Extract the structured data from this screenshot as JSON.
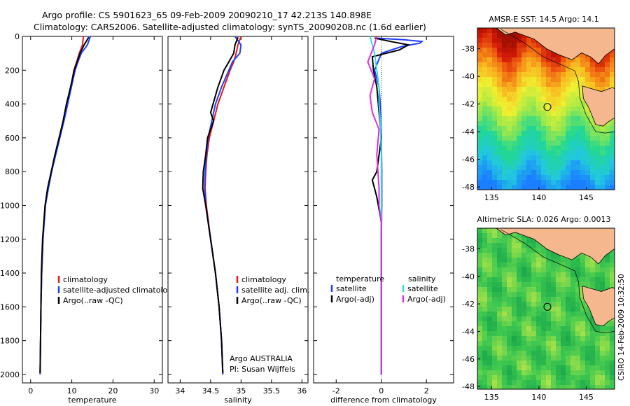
{
  "figure": {
    "title_line1": "Argo profile: CS 5901623_65 09-Feb-2009 20090210_17 42.213S 140.898E",
    "title_line2": "Climatology: CARS2006. Satellite-adjusted climatology: synTS_20090208.nc (1.6d earlier)",
    "side_stamp": "CSIRO 14-Feb-2009 10:32:50",
    "credit_line1": "Argo AUSTRALIA",
    "credit_line2": "PI: Susan Wijffels"
  },
  "colors": {
    "climatology": "#e41a1c",
    "satellite": "#1f3fff",
    "argo": "#000000",
    "sal_satellite": "#33dde8",
    "sal_argo": "#e02ee0",
    "land": "#f5b88e"
  },
  "chart_data": [
    {
      "type": "line",
      "xlabel": "temperature",
      "ylabel": "",
      "xlim": [
        -2,
        32
      ],
      "ylim": [
        2050,
        0
      ],
      "xticks": [
        0,
        10,
        20,
        30
      ],
      "yticks": [
        0,
        200,
        400,
        600,
        800,
        1000,
        1200,
        1400,
        1600,
        1800,
        2000
      ],
      "y_reversed": true,
      "legend": [
        "climatology",
        "satellite-adjusted climatology",
        "Argo(..raw -QC)"
      ],
      "legend_loc": "lower-center",
      "series": [
        {
          "name": "climatology",
          "color": "#e41a1c",
          "x": [
            12.8,
            12.6,
            11.8,
            11.2,
            10.5,
            9.8,
            8.9,
            8.0,
            7.0,
            6.0,
            5.0,
            4.2,
            3.5,
            3.0,
            2.7,
            2.5,
            2.4,
            2.3
          ],
          "y": [
            0,
            50,
            100,
            150,
            200,
            300,
            400,
            500,
            600,
            700,
            800,
            900,
            1000,
            1200,
            1400,
            1600,
            1800,
            2000
          ]
        },
        {
          "name": "satellite-adjusted climatology",
          "color": "#1f3fff",
          "x": [
            14.5,
            13.8,
            12.3,
            11.5,
            10.8,
            9.9,
            9.0,
            8.1,
            7.1,
            6.1,
            5.1,
            4.3,
            3.6,
            3.0,
            2.7,
            2.5,
            2.4,
            2.3
          ],
          "y": [
            0,
            50,
            100,
            150,
            200,
            300,
            400,
            500,
            600,
            700,
            800,
            900,
            1000,
            1200,
            1400,
            1600,
            1800,
            2000
          ]
        },
        {
          "name": "Argo(..raw -QC)",
          "color": "#000000",
          "x": [
            14.1,
            13.0,
            12.0,
            11.3,
            10.6,
            9.7,
            8.7,
            7.9,
            6.9,
            5.9,
            5.0,
            4.1,
            3.5,
            2.9,
            2.6,
            2.5,
            2.4,
            2.3
          ],
          "y": [
            5,
            50,
            100,
            150,
            200,
            300,
            400,
            500,
            600,
            700,
            800,
            900,
            1000,
            1200,
            1400,
            1600,
            1800,
            1990
          ]
        }
      ]
    },
    {
      "type": "line",
      "xlabel": "salinity",
      "ylabel": "",
      "xlim": [
        33.8,
        36.1
      ],
      "ylim": [
        2050,
        0
      ],
      "xticks": [
        34,
        34.5,
        35,
        35.5,
        36
      ],
      "y_reversed": true,
      "legend": [
        "climatology",
        "satellite adj. clim.",
        "Argo(..raw -QC)"
      ],
      "legend_loc": "lower-right",
      "series": [
        {
          "name": "climatology",
          "color": "#e41a1c",
          "x": [
            35.0,
            34.95,
            34.92,
            34.88,
            34.82,
            34.72,
            34.62,
            34.55,
            34.48,
            34.44,
            34.42,
            34.41,
            34.43,
            34.5,
            34.58,
            34.64,
            34.68,
            34.7
          ],
          "y": [
            0,
            50,
            100,
            150,
            200,
            300,
            400,
            500,
            600,
            700,
            800,
            900,
            1000,
            1200,
            1400,
            1600,
            1800,
            2000
          ]
        },
        {
          "name": "satellite adj. clim.",
          "color": "#1f3fff",
          "x": [
            34.9,
            35.0,
            34.98,
            34.86,
            34.8,
            34.68,
            34.58,
            34.52,
            34.46,
            34.43,
            34.41,
            34.4,
            34.42,
            34.5,
            34.58,
            34.64,
            34.68,
            34.7
          ],
          "y": [
            0,
            50,
            100,
            150,
            200,
            300,
            400,
            500,
            600,
            700,
            800,
            900,
            1000,
            1200,
            1400,
            1600,
            1800,
            2000
          ]
        },
        {
          "name": "Argo(..raw -QC)",
          "color": "#000000",
          "x": [
            34.95,
            34.9,
            34.88,
            34.8,
            34.72,
            34.62,
            34.5,
            34.55,
            34.45,
            34.42,
            34.38,
            34.37,
            34.42,
            34.5,
            34.58,
            34.64,
            34.68,
            34.7
          ],
          "y": [
            5,
            50,
            100,
            150,
            200,
            300,
            450,
            500,
            600,
            700,
            800,
            900,
            1000,
            1200,
            1400,
            1600,
            1800,
            1990
          ]
        }
      ]
    },
    {
      "type": "line",
      "xlabel": "difference from climatology",
      "ylabel": "",
      "xlim": [
        -3,
        3.2
      ],
      "ylim": [
        2050,
        0
      ],
      "xticks": [
        -2,
        0,
        2
      ],
      "y_reversed": true,
      "legend": [
        "temperature",
        "satellite",
        "Argo(-adj)",
        "salinity",
        "satellite",
        "Argo(-adj)"
      ],
      "legend_loc": "lower-center",
      "series": [
        {
          "name": "temperature satellite",
          "color": "#1f3fff",
          "x": [
            -0.3,
            1.0,
            1.8,
            1.7,
            0.9,
            0.0,
            -0.3,
            -0.1,
            -0.05,
            0.0,
            0.02,
            0.02,
            0.0,
            0.0,
            0.0,
            0.0,
            0.0
          ],
          "y": [
            10,
            20,
            30,
            40,
            60,
            100,
            200,
            300,
            400,
            600,
            800,
            1000,
            1200,
            1400,
            1600,
            1800,
            2000
          ]
        },
        {
          "name": "temperature Argo(-adj)",
          "color": "#000000",
          "x": [
            -0.3,
            0.4,
            1.2,
            0.8,
            -0.4,
            -0.35,
            -0.2,
            -0.1,
            0.0,
            -0.2,
            -0.4,
            -0.2,
            0.0,
            0.0,
            0.0,
            0.0
          ],
          "y": [
            10,
            30,
            50,
            80,
            120,
            200,
            300,
            450,
            600,
            800,
            850,
            950,
            1100,
            1400,
            1700,
            2000
          ]
        },
        {
          "name": "salinity satellite",
          "color": "#33dde8",
          "x": [
            -0.5,
            -0.4,
            -0.3,
            -0.2,
            -0.1,
            -0.1,
            -0.05,
            0.0,
            0.0,
            0.0,
            0.0,
            0.0,
            0.0,
            0.0
          ],
          "y": [
            0,
            50,
            100,
            200,
            300,
            400,
            500,
            700,
            900,
            1100,
            1300,
            1600,
            1800,
            2000
          ]
        },
        {
          "name": "salinity Argo(-adj)",
          "color": "#e02ee0",
          "x": [
            -0.2,
            -0.3,
            -0.6,
            -0.3,
            -0.5,
            -0.4,
            -0.1,
            -0.2,
            -0.1,
            -0.1,
            0.0,
            0.0,
            0.0,
            0.0
          ],
          "y": [
            0,
            50,
            150,
            250,
            350,
            450,
            550,
            700,
            900,
            1000,
            1100,
            1300,
            1600,
            2000
          ]
        }
      ]
    },
    {
      "type": "heatmap",
      "title": "AMSR-E SST: 14.5 Argo: 14.1",
      "xlim": [
        133.5,
        148
      ],
      "ylim": [
        -48.2,
        -36.5
      ],
      "xticks": [
        135,
        140,
        145
      ],
      "yticks": [
        -38,
        -40,
        -42,
        -44,
        -46,
        -48
      ],
      "marker": {
        "lon": 140.898,
        "lat": -42.213
      }
    },
    {
      "type": "heatmap",
      "title": "Altimetric SLA: 0.026 Argo: 0.0013",
      "xlim": [
        133.5,
        148
      ],
      "ylim": [
        -48.2,
        -36.5
      ],
      "xticks": [
        135,
        140,
        145
      ],
      "yticks": [
        -38,
        -40,
        -42,
        -44,
        -46,
        -48
      ],
      "marker": {
        "lon": 140.898,
        "lat": -42.213
      }
    }
  ]
}
